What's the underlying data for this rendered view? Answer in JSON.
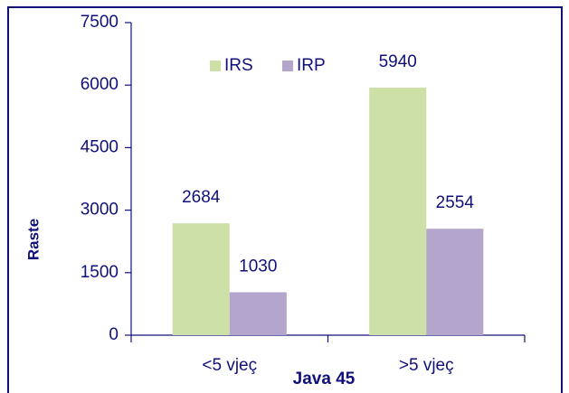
{
  "chart_data": {
    "type": "bar",
    "categories": [
      "<5 vjeç",
      ">5 vjeç"
    ],
    "series": [
      {
        "name": "IRS",
        "color": "#cde0a8",
        "values": [
          2684,
          5940
        ]
      },
      {
        "name": "IRP",
        "color": "#b4a5cc",
        "values": [
          1030,
          2554
        ]
      }
    ],
    "ylim": [
      0,
      7500
    ],
    "yticks": [
      0,
      1500,
      3000,
      4500,
      6000,
      7500
    ],
    "ylabel": "Raste",
    "xlabel": "Java 45",
    "legend": "top",
    "grid": false
  }
}
